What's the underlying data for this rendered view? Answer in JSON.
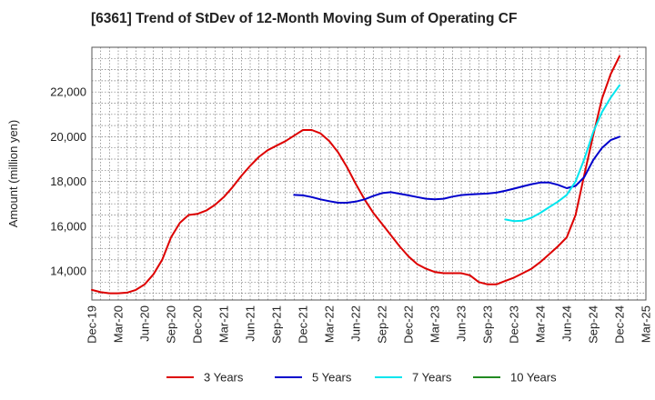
{
  "chart_data": {
    "type": "line",
    "title": "[6361]  Trend of StDev of 12-Month Moving Sum of Operating CF",
    "xlabel": "",
    "ylabel": "Amount (million yen)",
    "ylim": [
      12700,
      24000
    ],
    "yticks": [
      14000,
      16000,
      18000,
      20000,
      22000
    ],
    "ytick_labels": [
      "14,000",
      "16,000",
      "18,000",
      "20,000",
      "22,000"
    ],
    "xlim": [
      "2019-12",
      "2025-03"
    ],
    "xtick_labels": [
      "Dec-19",
      "Mar-20",
      "Jun-20",
      "Sep-20",
      "Dec-20",
      "Mar-21",
      "Jun-21",
      "Sep-21",
      "Dec-21",
      "Mar-22",
      "Jun-22",
      "Sep-22",
      "Dec-22",
      "Mar-23",
      "Jun-23",
      "Sep-23",
      "Dec-23",
      "Mar-24",
      "Jun-24",
      "Sep-24",
      "Dec-24",
      "Mar-25"
    ],
    "grid": true,
    "legend_position": "bottom",
    "series": [
      {
        "name": "3 Years",
        "color": "#dd0000",
        "x": [
          "2019-12",
          "2020-01",
          "2020-02",
          "2020-03",
          "2020-04",
          "2020-05",
          "2020-06",
          "2020-07",
          "2020-08",
          "2020-09",
          "2020-10",
          "2020-11",
          "2020-12",
          "2021-01",
          "2021-02",
          "2021-03",
          "2021-04",
          "2021-05",
          "2021-06",
          "2021-07",
          "2021-08",
          "2021-09",
          "2021-10",
          "2021-11",
          "2021-12",
          "2022-01",
          "2022-02",
          "2022-03",
          "2022-04",
          "2022-05",
          "2022-06",
          "2022-07",
          "2022-08",
          "2022-09",
          "2022-10",
          "2022-11",
          "2022-12",
          "2023-01",
          "2023-02",
          "2023-03",
          "2023-04",
          "2023-05",
          "2023-06",
          "2023-07",
          "2023-08",
          "2023-09",
          "2023-10",
          "2023-11",
          "2023-12",
          "2024-01",
          "2024-02",
          "2024-03",
          "2024-04",
          "2024-05",
          "2024-06",
          "2024-07",
          "2024-08",
          "2024-09",
          "2024-10",
          "2024-11",
          "2024-12"
        ],
        "values": [
          13150,
          13050,
          13000,
          13000,
          13030,
          13150,
          13400,
          13850,
          14500,
          15500,
          16150,
          16500,
          16550,
          16700,
          16950,
          17300,
          17750,
          18250,
          18700,
          19100,
          19400,
          19600,
          19800,
          20050,
          20300,
          20300,
          20150,
          19800,
          19300,
          18650,
          17900,
          17200,
          16600,
          16100,
          15600,
          15100,
          14650,
          14300,
          14100,
          13950,
          13900,
          13900,
          13900,
          13800,
          13500,
          13400,
          13400,
          13550,
          13700,
          13900,
          14100,
          14400,
          14750,
          15100,
          15500,
          16500,
          18300,
          20050,
          21700,
          22800,
          23600
        ]
      },
      {
        "name": "5 Years",
        "color": "#0000cc",
        "x": [
          "2021-11",
          "2021-12",
          "2022-01",
          "2022-02",
          "2022-03",
          "2022-04",
          "2022-05",
          "2022-06",
          "2022-07",
          "2022-08",
          "2022-09",
          "2022-10",
          "2022-11",
          "2022-12",
          "2023-01",
          "2023-02",
          "2023-03",
          "2023-04",
          "2023-05",
          "2023-06",
          "2023-07",
          "2023-08",
          "2023-09",
          "2023-10",
          "2023-11",
          "2023-12",
          "2024-01",
          "2024-02",
          "2024-03",
          "2024-04",
          "2024-05",
          "2024-06",
          "2024-07",
          "2024-08",
          "2024-09",
          "2024-10",
          "2024-11",
          "2024-12"
        ],
        "values": [
          17400,
          17380,
          17300,
          17200,
          17120,
          17050,
          17050,
          17100,
          17200,
          17350,
          17480,
          17520,
          17450,
          17380,
          17300,
          17230,
          17200,
          17230,
          17320,
          17390,
          17420,
          17440,
          17460,
          17500,
          17580,
          17680,
          17780,
          17880,
          17950,
          17950,
          17850,
          17700,
          17800,
          18200,
          18950,
          19500,
          19850,
          20000
        ]
      },
      {
        "name": "7 Years",
        "color": "#00e5ee",
        "x": [
          "2023-11",
          "2023-12",
          "2024-01",
          "2024-02",
          "2024-03",
          "2024-04",
          "2024-05",
          "2024-06",
          "2024-07",
          "2024-08",
          "2024-09",
          "2024-10",
          "2024-11",
          "2024-12"
        ],
        "values": [
          16300,
          16230,
          16250,
          16380,
          16600,
          16850,
          17100,
          17400,
          18000,
          19000,
          20200,
          21100,
          21750,
          22300
        ]
      },
      {
        "name": "10 Years",
        "color": "#228b22",
        "x": [],
        "values": []
      }
    ]
  }
}
